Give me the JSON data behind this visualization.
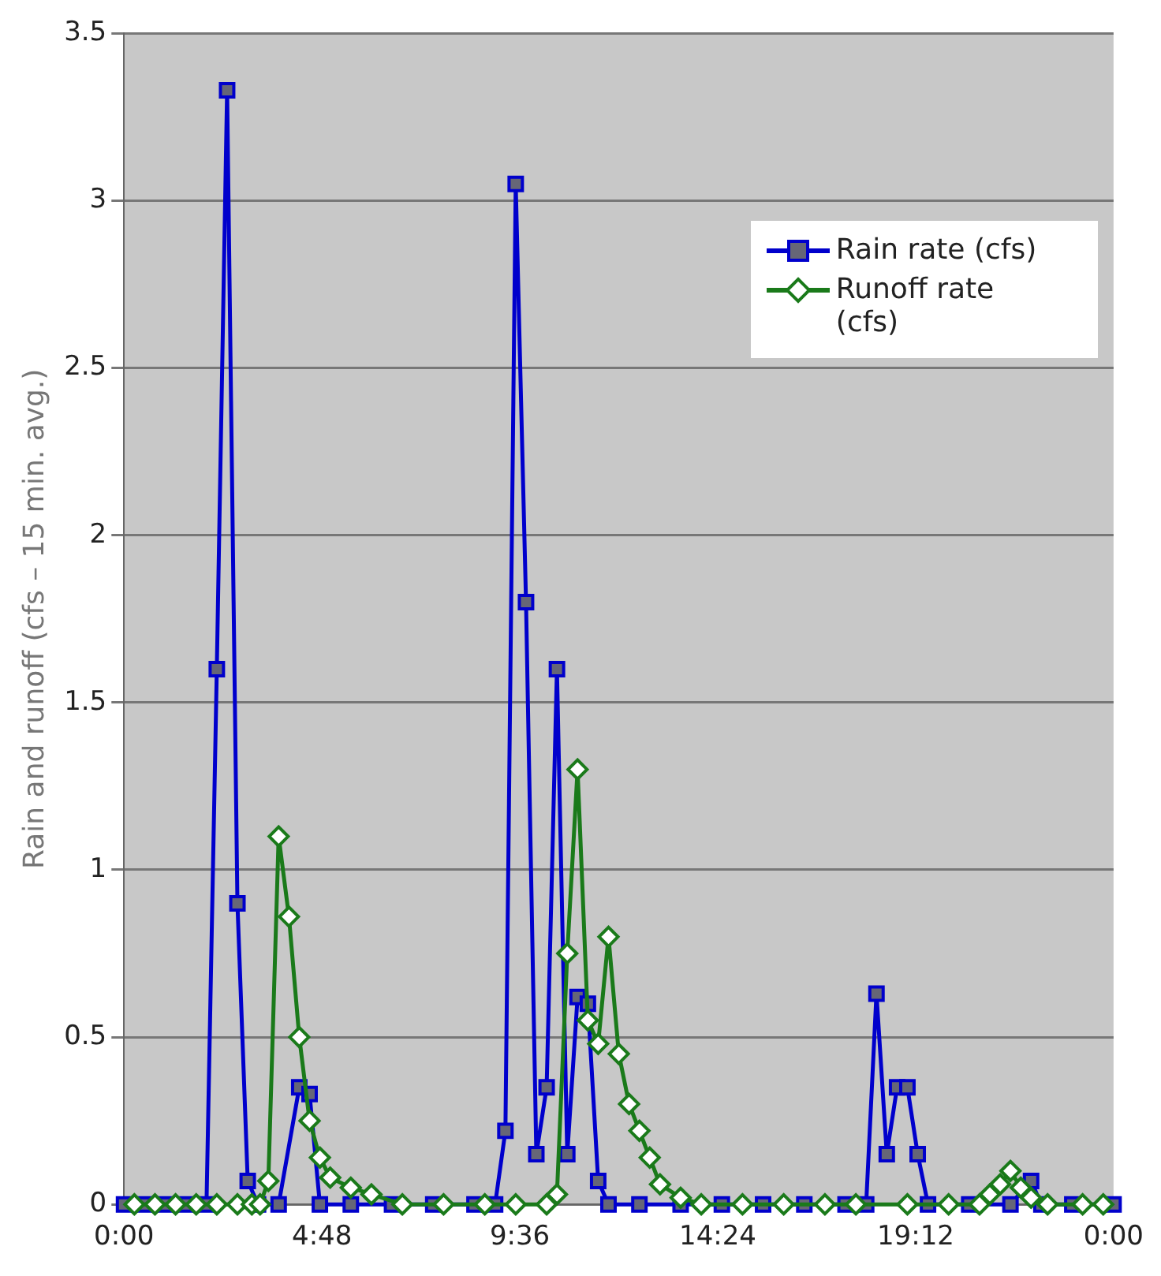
{
  "chart_data": {
    "type": "line",
    "ylabel": "Rain and runoff (cfs – 15 min. avg.)",
    "xlim": [
      0,
      24
    ],
    "xticks": [
      {
        "value": 0,
        "label": "0:00"
      },
      {
        "value": 4.8,
        "label": "4:48"
      },
      {
        "value": 9.6,
        "label": "9:36"
      },
      {
        "value": 14.4,
        "label": "14:24"
      },
      {
        "value": 19.2,
        "label": "19:12"
      },
      {
        "value": 24,
        "label": "0:00"
      }
    ],
    "ylim": [
      0,
      3.5
    ],
    "yticks": [
      0,
      0.5,
      1,
      1.5,
      2,
      2.5,
      3,
      3.5
    ],
    "grid": "y",
    "legend": "top right",
    "series": [
      {
        "name": "Rain rate (cfs)",
        "color": "#0000cc",
        "marker": "square",
        "x": [
          0,
          0.5,
          1,
          1.5,
          2,
          2.25,
          2.5,
          2.75,
          3,
          3.25,
          3.75,
          4.25,
          4.5,
          4.75,
          5.5,
          6.5,
          7.5,
          8.5,
          9,
          9.25,
          9.5,
          9.75,
          10,
          10.25,
          10.5,
          10.75,
          11,
          11.25,
          11.5,
          11.75,
          12.5,
          13.5,
          14.5,
          15.5,
          16.5,
          17.5,
          18,
          18.25,
          18.5,
          18.75,
          19,
          19.25,
          19.5,
          20.5,
          21.5,
          22,
          22.25,
          23,
          24
        ],
        "values": [
          0,
          0,
          0,
          0,
          0,
          1.6,
          3.33,
          0.9,
          0.07,
          0,
          0,
          0.35,
          0.33,
          0,
          0,
          0,
          0,
          0,
          0,
          0.22,
          3.05,
          1.8,
          0.15,
          0.35,
          1.6,
          0.15,
          0.62,
          0.6,
          0.07,
          0,
          0,
          0,
          0,
          0,
          0,
          0,
          0,
          0.63,
          0.15,
          0.35,
          0.35,
          0.15,
          0,
          0,
          0,
          0.07,
          0,
          0,
          0
        ]
      },
      {
        "name": "Runoff rate (cfs)",
        "color": "#1a7a1a",
        "marker": "diamond",
        "x": [
          0.25,
          0.75,
          1.25,
          1.75,
          2.25,
          2.75,
          3.1,
          3.3,
          3.5,
          3.75,
          4,
          4.25,
          4.5,
          4.75,
          5,
          5.5,
          6,
          6.75,
          7.75,
          8.75,
          9.5,
          10.25,
          10.5,
          10.75,
          11,
          11.25,
          11.5,
          11.75,
          12,
          12.25,
          12.5,
          12.75,
          13,
          13.5,
          14,
          15,
          16,
          17,
          17.75,
          19,
          20,
          20.75,
          21,
          21.25,
          21.5,
          21.75,
          22,
          22.4,
          23.25,
          23.75
        ],
        "values": [
          0,
          0,
          0,
          0,
          0,
          0,
          0,
          0,
          0.07,
          1.1,
          0.86,
          0.5,
          0.25,
          0.14,
          0.08,
          0.05,
          0.03,
          0,
          0,
          0,
          0,
          0,
          0.03,
          0.75,
          1.3,
          0.55,
          0.48,
          0.8,
          0.45,
          0.3,
          0.22,
          0.14,
          0.06,
          0.02,
          0,
          0,
          0,
          0,
          0,
          0,
          0,
          0,
          0.03,
          0.06,
          0.1,
          0.05,
          0.02,
          0,
          0,
          0
        ]
      }
    ]
  }
}
